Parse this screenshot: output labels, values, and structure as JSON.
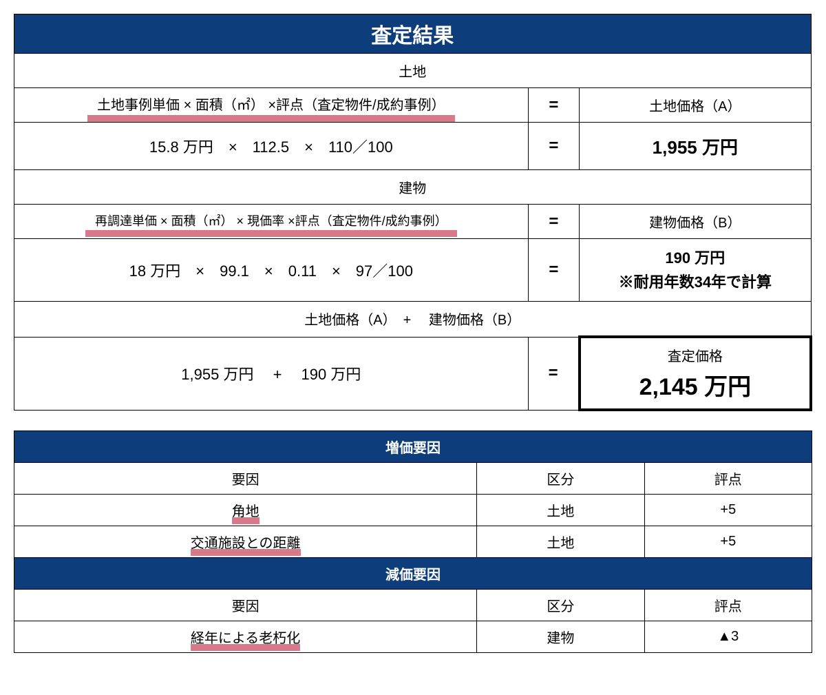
{
  "colors": {
    "header_bg": "#0e3d7c",
    "header_text": "#ffffff",
    "underline": "#d87a8a",
    "border": "#000000",
    "text": "#000000"
  },
  "assessment": {
    "title": "査定結果",
    "land": {
      "section": "土地",
      "formula_header": "土地事例単価 × 面積（㎡） ×評点（査定物件/成約事例）",
      "eq": "=",
      "result_label": "土地価格（A）",
      "formula_values": "15.8 万円　×　112.5　×　110／100",
      "result_value": "1,955 万円"
    },
    "building": {
      "section": "建物",
      "formula_header": "再調達単価 × 面積（㎡） × 現価率 ×評点（査定物件/成約事例）",
      "eq": "=",
      "result_label": "建物価格（B）",
      "formula_values": "18 万円　×　99.1　×　0.11　×　97／100",
      "result_value": "190 万円",
      "result_note": "※耐用年数34年で計算"
    },
    "sum": {
      "header": "土地価格（A）　+　 建物価格（B）",
      "formula_values": "1,955 万円　 +　 190 万円",
      "eq": "=",
      "final_label": "査定価格",
      "final_value": "2,145 万円"
    }
  },
  "appreciation": {
    "title": "増価要因",
    "col_factor": "要因",
    "col_category": "区分",
    "col_score": "評点",
    "rows": [
      {
        "factor": "角地",
        "category": "土地",
        "score": "+5"
      },
      {
        "factor": "交通施設との距離",
        "category": "土地",
        "score": "+5"
      }
    ]
  },
  "depreciation": {
    "title": "減価要因",
    "col_factor": "要因",
    "col_category": "区分",
    "col_score": "評点",
    "rows": [
      {
        "factor": "経年による老朽化",
        "category": "建物",
        "score": "▲3"
      }
    ]
  }
}
